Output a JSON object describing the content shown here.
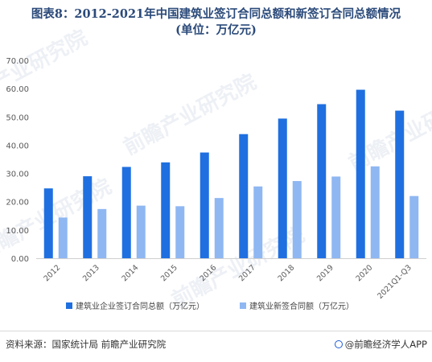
{
  "title": {
    "line1": "图表8：2012-2021年中国建筑业签订合同总额和新签订合同总额情况",
    "line2": "(单位：万亿元)"
  },
  "chart_data": {
    "type": "bar",
    "categories": [
      "2012",
      "2013",
      "2014",
      "2015",
      "2016",
      "2017",
      "2018",
      "2019",
      "2020",
      "2021Q1-Q3"
    ],
    "series": [
      {
        "name": "建筑业企业签订合同总额（万亿元）",
        "color": "#1f6fe0",
        "values": [
          24.7,
          29.0,
          32.3,
          33.9,
          37.4,
          43.9,
          49.4,
          54.5,
          59.6,
          52.2
        ]
      },
      {
        "name": "建筑业新签合同额（万亿元）",
        "color": "#8fb7f2",
        "values": [
          14.4,
          17.4,
          18.6,
          18.4,
          21.3,
          25.4,
          27.3,
          28.9,
          32.5,
          22.0
        ]
      }
    ],
    "yticks": [
      "0.00",
      "10.00",
      "20.00",
      "30.00",
      "40.00",
      "50.00",
      "60.00",
      "70.00"
    ],
    "ylim": [
      0,
      70
    ],
    "grid": false,
    "legend_position": "bottom"
  },
  "footer": {
    "source": "资料来源：国家统计局 前瞻产业研究院",
    "brand": "@前瞻经济学人APP"
  },
  "watermark": "前瞻产业研究院"
}
